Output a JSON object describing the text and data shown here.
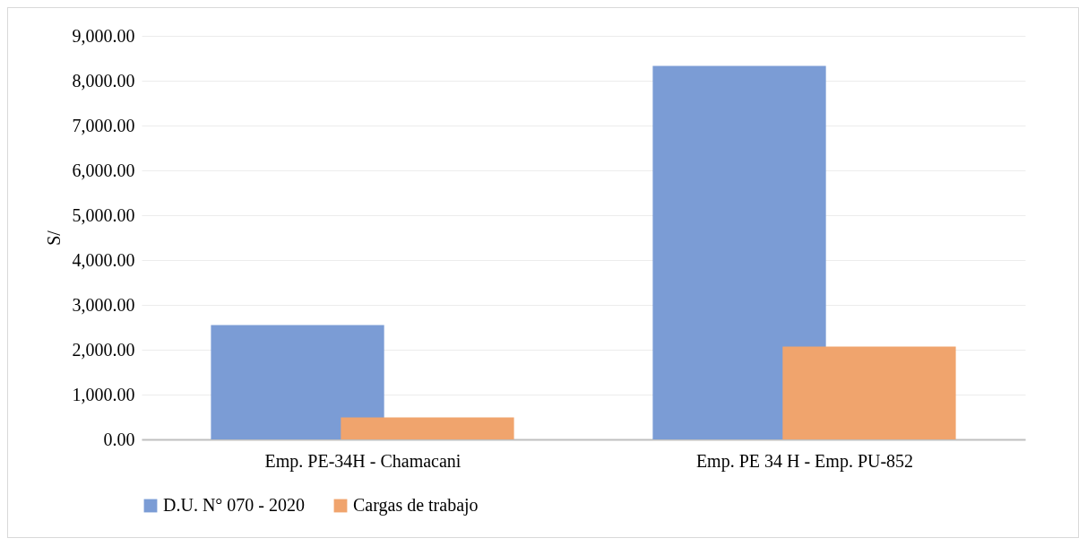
{
  "chart_data": {
    "type": "bar",
    "ylabel": "S/",
    "categories": [
      "Emp. PE-34H - Chamacani",
      "Emp. PE 34 H - Emp. PU-852"
    ],
    "series": [
      {
        "name": "D.U. N° 070 - 2020",
        "color": "#7b9cd5",
        "values": [
          2550,
          8330
        ]
      },
      {
        "name": "Cargas de trabajo",
        "color": "#f0a46d",
        "values": [
          490,
          2070
        ]
      }
    ],
    "ylim": [
      0,
      9000
    ],
    "yticks": [
      {
        "value": 0,
        "label": "0.00"
      },
      {
        "value": 1000,
        "label": "1,000.00"
      },
      {
        "value": 2000,
        "label": "2,000.00"
      },
      {
        "value": 3000,
        "label": "3,000.00"
      },
      {
        "value": 4000,
        "label": "4,000.00"
      },
      {
        "value": 5000,
        "label": "5,000.00"
      },
      {
        "value": 6000,
        "label": "6,000.00"
      },
      {
        "value": 7000,
        "label": "7,000.00"
      },
      {
        "value": 8000,
        "label": "8,000.00"
      },
      {
        "value": 9000,
        "label": "9,000.00"
      }
    ],
    "grid": "y",
    "legend": "bottom"
  }
}
